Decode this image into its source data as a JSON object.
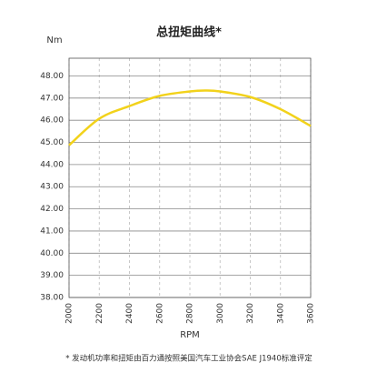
{
  "chart_data": {
    "type": "line",
    "title": "总扭矩曲线*",
    "y_label": "Nm",
    "x_label": "RPM",
    "footnote": "* 发动机功率和扭矩由百力通按照美国汽车工业协会SAE J1940标准评定",
    "x": [
      2000,
      2200,
      2400,
      2600,
      2800,
      2900,
      3000,
      3200,
      3400,
      3600
    ],
    "series": [
      {
        "name": "总扭矩",
        "color": "#f2d21b",
        "values": [
          44.87,
          46.07,
          46.64,
          47.1,
          47.3,
          47.34,
          47.3,
          47.05,
          46.5,
          45.74
        ]
      }
    ],
    "xlim": [
      2000,
      3600
    ],
    "xticks": [
      2000,
      2200,
      2400,
      2600,
      2800,
      3000,
      3200,
      3400,
      3600
    ],
    "ylim": [
      38,
      48.8
    ],
    "yticks": [
      {
        "value": 38,
        "label": "38.00"
      },
      {
        "value": 39,
        "label": "39.00"
      },
      {
        "value": 40,
        "label": "40.00"
      },
      {
        "value": 41,
        "label": "41.00"
      },
      {
        "value": 42,
        "label": "42.00"
      },
      {
        "value": 43,
        "label": "43.00"
      },
      {
        "value": 44,
        "label": "44.00"
      },
      {
        "value": 45,
        "label": "45.00"
      },
      {
        "value": 46,
        "label": "46.00"
      },
      {
        "value": 47,
        "label": "47.00"
      },
      {
        "value": 48,
        "label": "48.00"
      }
    ],
    "grid": true
  }
}
